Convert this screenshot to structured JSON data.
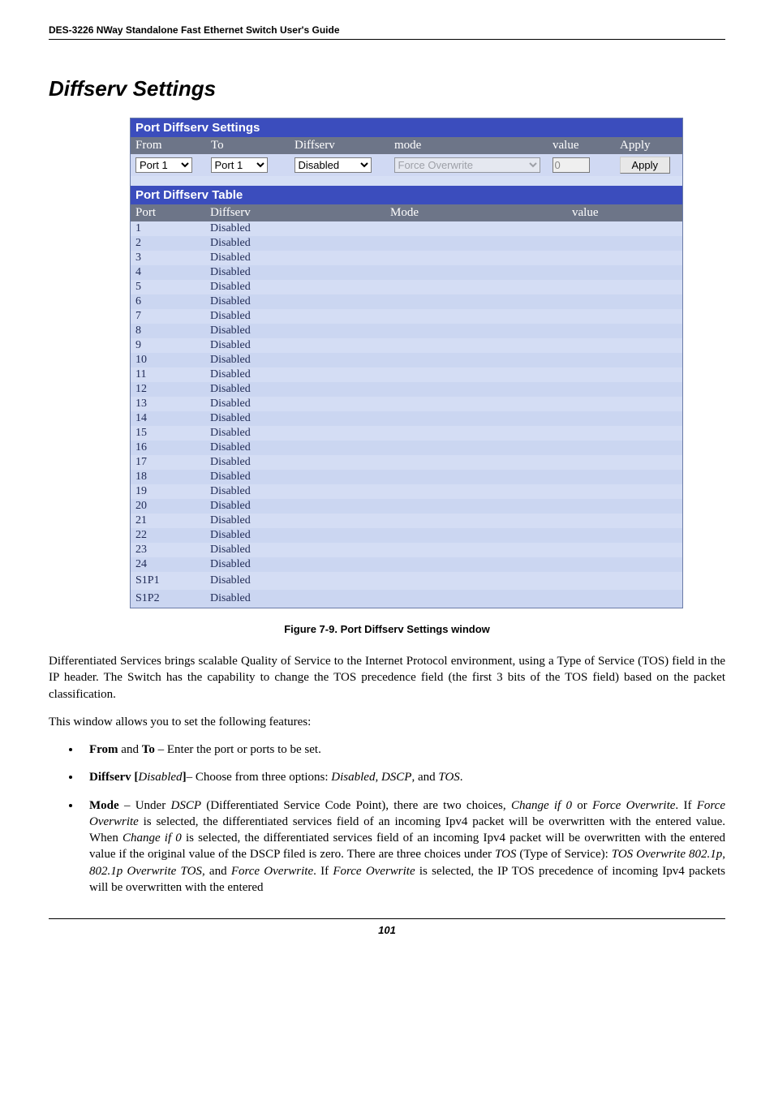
{
  "doc": {
    "header": "DES-3226 NWay Standalone Fast Ethernet Switch User's Guide",
    "section_title": "Diffserv Settings",
    "figure_caption": "Figure 7-9.  Port Diffserv Settings window",
    "page_number": "101"
  },
  "settings_panel": {
    "title": "Port Diffserv Settings",
    "headers": {
      "from": "From",
      "to": "To",
      "diffserv": "Diffserv",
      "mode": "mode",
      "value": "value",
      "apply": "Apply"
    },
    "controls": {
      "from_value": "Port 1",
      "to_value": "Port 1",
      "diffserv_value": "Disabled",
      "mode_value": "Force Overwrite",
      "value_value": "0",
      "apply_label": "Apply"
    },
    "table_title": "Port Diffserv Table",
    "table_headers": {
      "port": "Port",
      "diffserv": "Diffserv",
      "mode": "Mode",
      "value": "value"
    },
    "rows": [
      {
        "port": "1",
        "diffserv": "Disabled",
        "mode": "",
        "value": ""
      },
      {
        "port": "2",
        "diffserv": "Disabled",
        "mode": "",
        "value": ""
      },
      {
        "port": "3",
        "diffserv": "Disabled",
        "mode": "",
        "value": ""
      },
      {
        "port": "4",
        "diffserv": "Disabled",
        "mode": "",
        "value": ""
      },
      {
        "port": "5",
        "diffserv": "Disabled",
        "mode": "",
        "value": ""
      },
      {
        "port": "6",
        "diffserv": "Disabled",
        "mode": "",
        "value": ""
      },
      {
        "port": "7",
        "diffserv": "Disabled",
        "mode": "",
        "value": ""
      },
      {
        "port": "8",
        "diffserv": "Disabled",
        "mode": "",
        "value": ""
      },
      {
        "port": "9",
        "diffserv": "Disabled",
        "mode": "",
        "value": ""
      },
      {
        "port": "10",
        "diffserv": "Disabled",
        "mode": "",
        "value": ""
      },
      {
        "port": "11",
        "diffserv": "Disabled",
        "mode": "",
        "value": ""
      },
      {
        "port": "12",
        "diffserv": "Disabled",
        "mode": "",
        "value": ""
      },
      {
        "port": "13",
        "diffserv": "Disabled",
        "mode": "",
        "value": ""
      },
      {
        "port": "14",
        "diffserv": "Disabled",
        "mode": "",
        "value": ""
      },
      {
        "port": "15",
        "diffserv": "Disabled",
        "mode": "",
        "value": ""
      },
      {
        "port": "16",
        "diffserv": "Disabled",
        "mode": "",
        "value": ""
      },
      {
        "port": "17",
        "diffserv": "Disabled",
        "mode": "",
        "value": ""
      },
      {
        "port": "18",
        "diffserv": "Disabled",
        "mode": "",
        "value": ""
      },
      {
        "port": "19",
        "diffserv": "Disabled",
        "mode": "",
        "value": ""
      },
      {
        "port": "20",
        "diffserv": "Disabled",
        "mode": "",
        "value": ""
      },
      {
        "port": "21",
        "diffserv": "Disabled",
        "mode": "",
        "value": ""
      },
      {
        "port": "22",
        "diffserv": "Disabled",
        "mode": "",
        "value": ""
      },
      {
        "port": "23",
        "diffserv": "Disabled",
        "mode": "",
        "value": ""
      },
      {
        "port": "24",
        "diffserv": "Disabled",
        "mode": "",
        "value": ""
      },
      {
        "port": "S1P1",
        "diffserv": "Disabled",
        "mode": "",
        "value": ""
      },
      {
        "port": "S1P2",
        "diffserv": "Disabled",
        "mode": "",
        "value": ""
      }
    ]
  },
  "paragraphs": {
    "p1": "Differentiated Services brings scalable Quality of Service to the Internet Protocol environment, using a Type of Service (TOS) field in the IP header. The Switch has the capability to change the TOS precedence field (the first 3 bits of the TOS field) based on the packet classification.",
    "p2": "This window allows you to set the following features:"
  },
  "style": {
    "panel_title_bg": "#3b4dbd",
    "panel_title_color": "#ffffff",
    "header_row_bg": "#6d7588",
    "header_row_color": "#ffffff",
    "row_bg_a": "#d4ddf4",
    "row_bg_b": "#cbd6f1",
    "panel_bg": "#d6dff5",
    "body_font": "Georgia, 'Times New Roman', serif",
    "sans_font": "Arial, Helvetica, sans-serif"
  }
}
